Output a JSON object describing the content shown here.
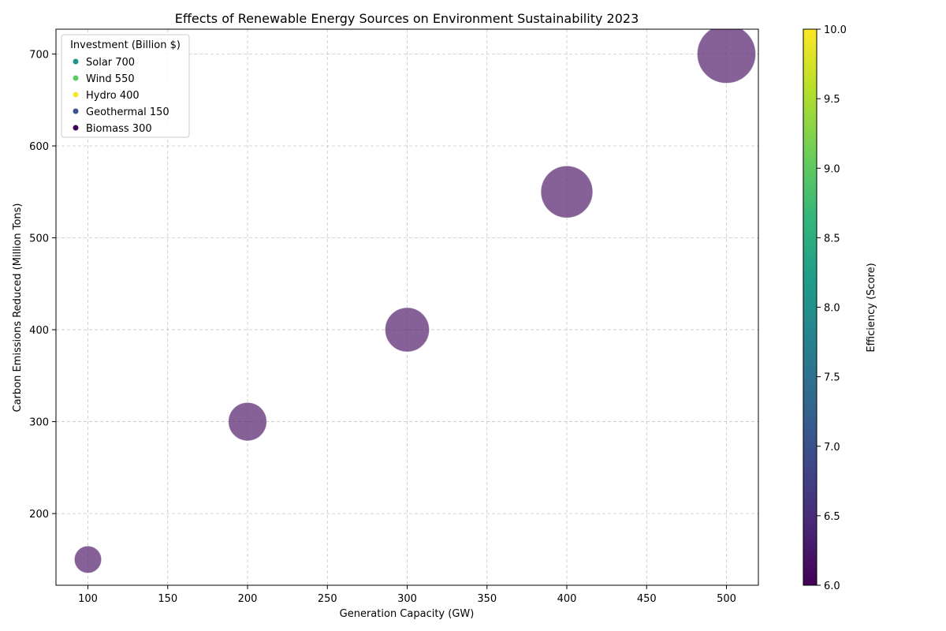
{
  "chart_data": {
    "type": "scatter",
    "title": "Effects of Renewable Energy Sources on Environment Sustainability 2023",
    "xlabel": "Generation Capacity (GW)",
    "ylabel": "Carbon Emissions Reduced (Million Tons)",
    "xlim": [
      80,
      520
    ],
    "ylim": [
      122,
      727
    ],
    "xticks": [
      100,
      150,
      200,
      250,
      300,
      350,
      400,
      450,
      500
    ],
    "yticks": [
      200,
      300,
      400,
      500,
      600,
      700
    ],
    "grid": true,
    "points": [
      {
        "x": 100,
        "y": 150,
        "investment": 150
      },
      {
        "x": 200,
        "y": 300,
        "investment": 300
      },
      {
        "x": 300,
        "y": 400,
        "investment": 400
      },
      {
        "x": 400,
        "y": 550,
        "investment": 550
      },
      {
        "x": 500,
        "y": 700,
        "investment": 700
      }
    ],
    "point_color": "#5e2c74",
    "point_opacity": 0.75,
    "legend": {
      "title": "Investment (Billion $)",
      "placement": "top-left",
      "entries": [
        {
          "label": "Solar 700",
          "color": "#21918c"
        },
        {
          "label": "Wind 550",
          "color": "#5ec962"
        },
        {
          "label": "Hydro 400",
          "color": "#fde725"
        },
        {
          "label": "Geothermal 150",
          "color": "#3b528b"
        },
        {
          "label": "Biomass 300",
          "color": "#440154"
        }
      ]
    },
    "colorbar": {
      "label": "Efficiency (Score)",
      "range": [
        6.0,
        10.0
      ],
      "ticks": [
        "6.0",
        "6.5",
        "7.0",
        "7.5",
        "8.0",
        "8.5",
        "9.0",
        "9.5",
        "10.0"
      ],
      "colormap": [
        "#440154",
        "#482878",
        "#3e4989",
        "#31688e",
        "#26828e",
        "#1f9e89",
        "#35b779",
        "#6ece58",
        "#b5de2b",
        "#fde725"
      ]
    }
  }
}
